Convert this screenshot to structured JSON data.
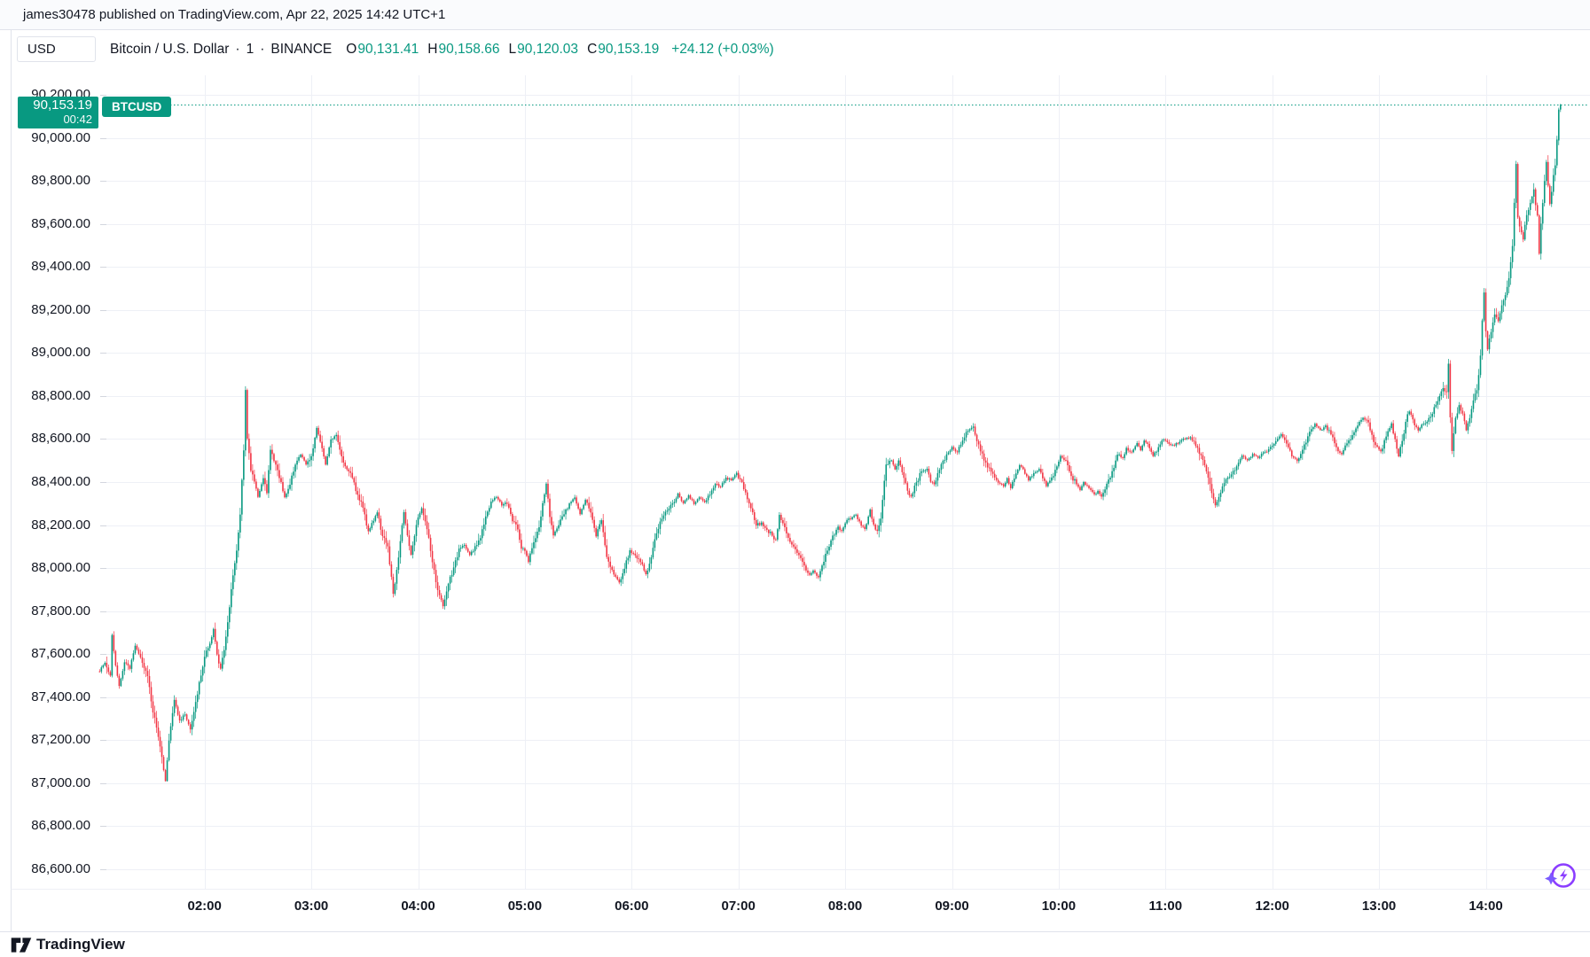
{
  "attribution": {
    "text": "james30478 published on TradingView.com, Apr 22, 2025 14:42 UTC+1"
  },
  "header": {
    "currency_button": "USD",
    "symbol_title": "Bitcoin / U.S. Dollar",
    "separator": "·",
    "interval": "1",
    "exchange": "BINANCE",
    "ohlc": {
      "open_label": "O",
      "open": "90,131.41",
      "high_label": "H",
      "high": "90,158.66",
      "low_label": "L",
      "low": "90,120.03",
      "close_label": "C",
      "close": "90,153.19",
      "change": "+24.12 (+0.03%)"
    }
  },
  "price_line": {
    "price": "90,153.19",
    "countdown": "00:42",
    "badge": "BTCUSD"
  },
  "y_axis": {
    "labels": [
      {
        "price": 90200,
        "label": "90,200.00"
      },
      {
        "price": 90000,
        "label": "90,000.00"
      },
      {
        "price": 89800,
        "label": "89,800.00"
      },
      {
        "price": 89600,
        "label": "89,600.00"
      },
      {
        "price": 89400,
        "label": "89,400.00"
      },
      {
        "price": 89200,
        "label": "89,200.00"
      },
      {
        "price": 89000,
        "label": "89,000.00"
      },
      {
        "price": 88800,
        "label": "88,800.00"
      },
      {
        "price": 88600,
        "label": "88,600.00"
      },
      {
        "price": 88400,
        "label": "88,400.00"
      },
      {
        "price": 88200,
        "label": "88,200.00"
      },
      {
        "price": 88000,
        "label": "88,000.00"
      },
      {
        "price": 87800,
        "label": "87,800.00"
      },
      {
        "price": 87600,
        "label": "87,600.00"
      },
      {
        "price": 87400,
        "label": "87,400.00"
      },
      {
        "price": 87200,
        "label": "87,200.00"
      },
      {
        "price": 87000,
        "label": "87,000.00"
      },
      {
        "price": 86800,
        "label": "86,800.00"
      },
      {
        "price": 86600,
        "label": "86,600.00"
      }
    ]
  },
  "x_axis": {
    "labels": [
      {
        "minute": 60,
        "label": "02:00"
      },
      {
        "minute": 120,
        "label": "03:00"
      },
      {
        "minute": 180,
        "label": "04:00"
      },
      {
        "minute": 240,
        "label": "05:00"
      },
      {
        "minute": 300,
        "label": "06:00"
      },
      {
        "minute": 360,
        "label": "07:00"
      },
      {
        "minute": 420,
        "label": "08:00"
      },
      {
        "minute": 480,
        "label": "09:00"
      },
      {
        "minute": 540,
        "label": "10:00"
      },
      {
        "minute": 600,
        "label": "11:00"
      },
      {
        "minute": 660,
        "label": "12:00"
      },
      {
        "minute": 720,
        "label": "13:00"
      },
      {
        "minute": 780,
        "label": "14:00"
      }
    ]
  },
  "footer": {
    "brand": "TradingView"
  },
  "colors": {
    "up": "#089981",
    "down": "#F23645",
    "accent": "#089981",
    "grid": "#eef0f6",
    "frame": "#e0e3eb",
    "tick": "#d3d6de",
    "text": "#131722",
    "ai_purple": "#8b3dff",
    "ai_violet": "#7b5cff"
  },
  "chart_data": {
    "type": "candlestick",
    "symbol": "BTCUSD",
    "exchange": "BINANCE",
    "interval_minutes": 1,
    "session_start": "01:00",
    "session_end": "14:42",
    "price_range_visible": [
      86600,
      90200
    ],
    "time_labels": [
      "02:00",
      "03:00",
      "04:00",
      "05:00",
      "06:00",
      "07:00",
      "08:00",
      "09:00",
      "10:00",
      "11:00",
      "12:00",
      "13:00",
      "14:00"
    ],
    "current": {
      "open": 90131.41,
      "high": 90158.66,
      "low": 90120.03,
      "close": 90153.19,
      "change": 24.12,
      "change_pct": 0.03
    },
    "session_low": 87010,
    "session_high": 90158.66,
    "waypoints": [
      [
        1,
        87520
      ],
      [
        4,
        87560
      ],
      [
        7,
        87500
      ],
      [
        8,
        87690
      ],
      [
        10,
        87550
      ],
      [
        12,
        87450
      ],
      [
        15,
        87560
      ],
      [
        18,
        87530
      ],
      [
        21,
        87640
      ],
      [
        25,
        87560
      ],
      [
        28,
        87500
      ],
      [
        31,
        87330
      ],
      [
        33,
        87260
      ],
      [
        36,
        87120
      ],
      [
        38,
        87010
      ],
      [
        40,
        87200
      ],
      [
        43,
        87390
      ],
      [
        46,
        87290
      ],
      [
        49,
        87320
      ],
      [
        52,
        87250
      ],
      [
        55,
        87380
      ],
      [
        58,
        87500
      ],
      [
        60,
        87590
      ],
      [
        63,
        87650
      ],
      [
        65,
        87715
      ],
      [
        67,
        87600
      ],
      [
        69,
        87530
      ],
      [
        72,
        87680
      ],
      [
        75,
        87900
      ],
      [
        78,
        88080
      ],
      [
        80,
        88250
      ],
      [
        82,
        88550
      ],
      [
        83,
        88830
      ],
      [
        84,
        88600
      ],
      [
        86,
        88450
      ],
      [
        88,
        88400
      ],
      [
        90,
        88330
      ],
      [
        93,
        88420
      ],
      [
        95,
        88350
      ],
      [
        97,
        88550
      ],
      [
        100,
        88480
      ],
      [
        103,
        88400
      ],
      [
        105,
        88330
      ],
      [
        108,
        88390
      ],
      [
        111,
        88480
      ],
      [
        114,
        88530
      ],
      [
        117,
        88480
      ],
      [
        120,
        88520
      ],
      [
        123,
        88650
      ],
      [
        126,
        88560
      ],
      [
        128,
        88480
      ],
      [
        131,
        88600
      ],
      [
        134,
        88620
      ],
      [
        137,
        88520
      ],
      [
        140,
        88460
      ],
      [
        143,
        88420
      ],
      [
        146,
        88340
      ],
      [
        149,
        88280
      ],
      [
        152,
        88170
      ],
      [
        155,
        88220
      ],
      [
        157,
        88260
      ],
      [
        160,
        88150
      ],
      [
        163,
        88100
      ],
      [
        166,
        87880
      ],
      [
        169,
        88050
      ],
      [
        172,
        88260
      ],
      [
        174,
        88150
      ],
      [
        176,
        88060
      ],
      [
        179,
        88200
      ],
      [
        182,
        88280
      ],
      [
        185,
        88180
      ],
      [
        188,
        88030
      ],
      [
        191,
        87900
      ],
      [
        194,
        87820
      ],
      [
        197,
        87930
      ],
      [
        200,
        88000
      ],
      [
        203,
        88090
      ],
      [
        206,
        88110
      ],
      [
        209,
        88060
      ],
      [
        212,
        88100
      ],
      [
        215,
        88140
      ],
      [
        218,
        88240
      ],
      [
        221,
        88310
      ],
      [
        224,
        88330
      ],
      [
        227,
        88290
      ],
      [
        230,
        88300
      ],
      [
        233,
        88220
      ],
      [
        236,
        88180
      ],
      [
        238,
        88090
      ],
      [
        240,
        88080
      ],
      [
        242,
        88030
      ],
      [
        245,
        88120
      ],
      [
        248,
        88190
      ],
      [
        250,
        88300
      ],
      [
        252,
        88390
      ],
      [
        254,
        88240
      ],
      [
        256,
        88150
      ],
      [
        259,
        88200
      ],
      [
        262,
        88250
      ],
      [
        265,
        88300
      ],
      [
        268,
        88330
      ],
      [
        271,
        88250
      ],
      [
        274,
        88320
      ],
      [
        277,
        88260
      ],
      [
        280,
        88150
      ],
      [
        283,
        88220
      ],
      [
        286,
        88050
      ],
      [
        289,
        87990
      ],
      [
        293,
        87935
      ],
      [
        296,
        88000
      ],
      [
        299,
        88080
      ],
      [
        302,
        88060
      ],
      [
        305,
        88030
      ],
      [
        308,
        87970
      ],
      [
        311,
        88050
      ],
      [
        314,
        88160
      ],
      [
        317,
        88230
      ],
      [
        320,
        88270
      ],
      [
        323,
        88300
      ],
      [
        326,
        88345
      ],
      [
        329,
        88300
      ],
      [
        332,
        88340
      ],
      [
        335,
        88300
      ],
      [
        338,
        88330
      ],
      [
        341,
        88310
      ],
      [
        344,
        88340
      ],
      [
        347,
        88390
      ],
      [
        350,
        88380
      ],
      [
        353,
        88420
      ],
      [
        356,
        88410
      ],
      [
        359,
        88440
      ],
      [
        361,
        88410
      ],
      [
        364,
        88350
      ],
      [
        367,
        88280
      ],
      [
        370,
        88200
      ],
      [
        373,
        88210
      ],
      [
        376,
        88180
      ],
      [
        379,
        88150
      ],
      [
        381,
        88130
      ],
      [
        383,
        88245
      ],
      [
        385,
        88210
      ],
      [
        387,
        88160
      ],
      [
        390,
        88110
      ],
      [
        393,
        88070
      ],
      [
        396,
        88030
      ],
      [
        398,
        87990
      ],
      [
        400,
        87970
      ],
      [
        402,
        87990
      ],
      [
        405,
        87960
      ],
      [
        407,
        88010
      ],
      [
        410,
        88080
      ],
      [
        413,
        88150
      ],
      [
        416,
        88190
      ],
      [
        418,
        88170
      ],
      [
        420,
        88210
      ],
      [
        423,
        88230
      ],
      [
        426,
        88250
      ],
      [
        429,
        88200
      ],
      [
        431,
        88180
      ],
      [
        434,
        88270
      ],
      [
        436,
        88200
      ],
      [
        438,
        88170
      ],
      [
        440,
        88230
      ],
      [
        443,
        88480
      ],
      [
        446,
        88500
      ],
      [
        448,
        88460
      ],
      [
        450,
        88500
      ],
      [
        453,
        88420
      ],
      [
        455,
        88360
      ],
      [
        457,
        88330
      ],
      [
        460,
        88400
      ],
      [
        463,
        88450
      ],
      [
        466,
        88460
      ],
      [
        468,
        88400
      ],
      [
        470,
        88390
      ],
      [
        472,
        88440
      ],
      [
        475,
        88500
      ],
      [
        478,
        88540
      ],
      [
        480,
        88560
      ],
      [
        483,
        88540
      ],
      [
        486,
        88590
      ],
      [
        489,
        88640
      ],
      [
        492,
        88660
      ],
      [
        494,
        88590
      ],
      [
        497,
        88530
      ],
      [
        500,
        88470
      ],
      [
        503,
        88440
      ],
      [
        506,
        88400
      ],
      [
        509,
        88380
      ],
      [
        511,
        88420
      ],
      [
        513,
        88370
      ],
      [
        516,
        88440
      ],
      [
        518,
        88480
      ],
      [
        521,
        88440
      ],
      [
        523,
        88410
      ],
      [
        526,
        88440
      ],
      [
        529,
        88460
      ],
      [
        531,
        88420
      ],
      [
        533,
        88380
      ],
      [
        536,
        88420
      ],
      [
        539,
        88470
      ],
      [
        541,
        88520
      ],
      [
        544,
        88500
      ],
      [
        547,
        88430
      ],
      [
        550,
        88390
      ],
      [
        552,
        88360
      ],
      [
        554,
        88400
      ],
      [
        557,
        88370
      ],
      [
        560,
        88340
      ],
      [
        562,
        88360
      ],
      [
        564,
        88330
      ],
      [
        567,
        88390
      ],
      [
        570,
        88450
      ],
      [
        573,
        88530
      ],
      [
        576,
        88510
      ],
      [
        578,
        88560
      ],
      [
        581,
        88540
      ],
      [
        584,
        88580
      ],
      [
        586,
        88550
      ],
      [
        588,
        88590
      ],
      [
        591,
        88560
      ],
      [
        593,
        88520
      ],
      [
        596,
        88560
      ],
      [
        599,
        88600
      ],
      [
        602,
        88580
      ],
      [
        605,
        88570
      ],
      [
        608,
        88590
      ],
      [
        611,
        88600
      ],
      [
        614,
        88610
      ],
      [
        616,
        88590
      ],
      [
        618,
        88560
      ],
      [
        621,
        88500
      ],
      [
        624,
        88420
      ],
      [
        626,
        88350
      ],
      [
        628,
        88290
      ],
      [
        630,
        88330
      ],
      [
        632,
        88380
      ],
      [
        635,
        88420
      ],
      [
        638,
        88450
      ],
      [
        641,
        88490
      ],
      [
        643,
        88520
      ],
      [
        646,
        88500
      ],
      [
        649,
        88530
      ],
      [
        652,
        88510
      ],
      [
        655,
        88540
      ],
      [
        658,
        88550
      ],
      [
        660,
        88570
      ],
      [
        663,
        88600
      ],
      [
        665,
        88620
      ],
      [
        668,
        88580
      ],
      [
        671,
        88520
      ],
      [
        674,
        88500
      ],
      [
        677,
        88550
      ],
      [
        680,
        88610
      ],
      [
        684,
        88670
      ],
      [
        687,
        88640
      ],
      [
        690,
        88660
      ],
      [
        693,
        88620
      ],
      [
        696,
        88560
      ],
      [
        699,
        88530
      ],
      [
        702,
        88580
      ],
      [
        705,
        88620
      ],
      [
        708,
        88660
      ],
      [
        711,
        88700
      ],
      [
        714,
        88680
      ],
      [
        716,
        88620
      ],
      [
        718,
        88570
      ],
      [
        721,
        88540
      ],
      [
        724,
        88610
      ],
      [
        727,
        88670
      ],
      [
        729,
        88600
      ],
      [
        731,
        88520
      ],
      [
        733,
        88590
      ],
      [
        735,
        88680
      ],
      [
        737,
        88730
      ],
      [
        739,
        88690
      ],
      [
        742,
        88640
      ],
      [
        744,
        88670
      ],
      [
        747,
        88680
      ],
      [
        750,
        88720
      ],
      [
        752,
        88760
      ],
      [
        754,
        88800
      ],
      [
        756,
        88835
      ],
      [
        758,
        88820
      ],
      [
        759,
        88950
      ],
      [
        760,
        88700
      ],
      [
        761,
        88545
      ],
      [
        763,
        88700
      ],
      [
        765,
        88760
      ],
      [
        767,
        88720
      ],
      [
        769,
        88640
      ],
      [
        771,
        88700
      ],
      [
        773,
        88780
      ],
      [
        775,
        88830
      ],
      [
        776,
        88900
      ],
      [
        777,
        88990
      ],
      [
        778,
        89150
      ],
      [
        779,
        89280
      ],
      [
        780,
        89100
      ],
      [
        781,
        89020
      ],
      [
        783,
        89100
      ],
      [
        785,
        89180
      ],
      [
        787,
        89150
      ],
      [
        789,
        89220
      ],
      [
        791,
        89270
      ],
      [
        793,
        89350
      ],
      [
        795,
        89500
      ],
      [
        796,
        89700
      ],
      [
        797,
        89880
      ],
      [
        798,
        89630
      ],
      [
        800,
        89560
      ],
      [
        801,
        89530
      ],
      [
        803,
        89640
      ],
      [
        805,
        89700
      ],
      [
        807,
        89760
      ],
      [
        808,
        89690
      ],
      [
        809,
        89640
      ],
      [
        810,
        89460
      ],
      [
        811,
        89600
      ],
      [
        812,
        89700
      ],
      [
        813,
        89800
      ],
      [
        814,
        89890
      ],
      [
        815,
        89780
      ],
      [
        816,
        89690
      ],
      [
        817,
        89750
      ],
      [
        818,
        89830
      ],
      [
        819,
        89870
      ],
      [
        820,
        89990
      ],
      [
        821,
        90131
      ],
      [
        822,
        90153
      ]
    ]
  }
}
